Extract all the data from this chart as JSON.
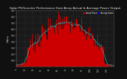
{
  "title": "Solar PV/Inverter Performance East Array Actual & Average Power Output",
  "title_fontsize": 3.2,
  "bg_color": "#101010",
  "plot_bg_color": "#1a1a1a",
  "bar_color": "#cc0000",
  "avg_line_color": "#00ffff",
  "grid_color": "#555555",
  "ylabel": "Watts",
  "ylabel_fontsize": 2.8,
  "tick_fontsize": 2.2,
  "tick_color": "#cccccc",
  "ylim": [
    0,
    900
  ],
  "yticks": [
    100,
    200,
    300,
    400,
    500,
    600,
    700,
    800,
    900
  ],
  "legend_labels": [
    "Actual Power",
    "Average Power"
  ],
  "legend_colors": [
    "#cc0000",
    "#0000ff"
  ],
  "n_bars": 144,
  "seed": 7
}
